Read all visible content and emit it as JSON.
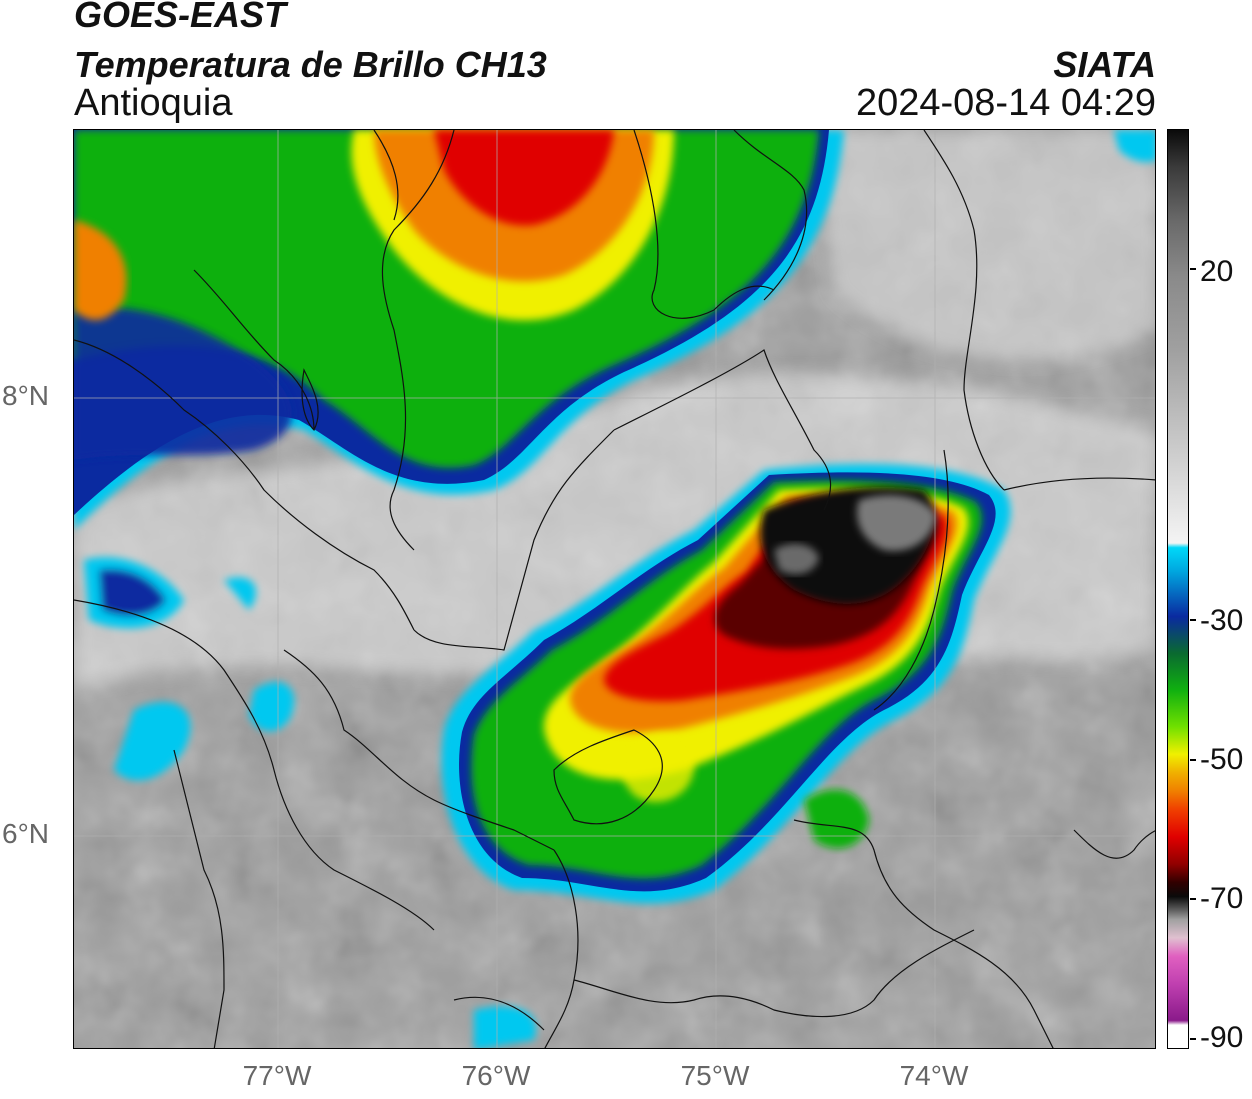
{
  "header": {
    "satellite": "GOES-EAST",
    "product": "Temperatura de Brillo CH13",
    "region": "Antioquia",
    "agency": "SIATA",
    "timestamp": "2024-08-14 04:29"
  },
  "map": {
    "lat_ticks": [
      "8°N",
      "6°N"
    ],
    "lon_ticks": [
      "77°W",
      "76°W",
      "75°W",
      "74°W"
    ],
    "grid": true
  },
  "colorbar": {
    "ticks": [
      "20",
      "-30",
      "-50",
      "-70",
      "-90"
    ],
    "unit": "",
    "colors": {
      "warm_gray": "#9a9a9a",
      "light": "#f0f0f0",
      "cyan": "#00c8f0",
      "blue": "#0a2aa0",
      "green": "#10b010",
      "yellow": "#f0f000",
      "orange": "#f08000",
      "red": "#e00000",
      "dark_red": "#5a0000",
      "black": "#0a0a0a",
      "pink": "#e060c0",
      "purple": "#8a1a8a"
    }
  }
}
